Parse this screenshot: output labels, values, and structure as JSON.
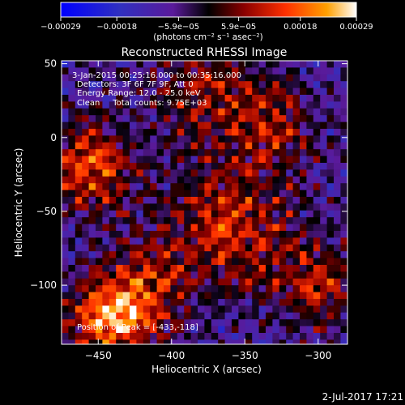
{
  "chart_data": {
    "type": "heatmap",
    "title": "Reconstructed RHESSI Image",
    "xlabel": "Heliocentric X (arcsec)",
    "ylabel": "Heliocentric Y (arcsec)",
    "xlim": [
      -475,
      -280
    ],
    "ylim": [
      -140,
      52
    ],
    "xticks": [
      -450,
      -400,
      -350,
      -300
    ],
    "xtick_labels": [
      "−450",
      "−400",
      "−350",
      "−300"
    ],
    "yticks": [
      50,
      0,
      -50,
      -100
    ],
    "ytick_labels": [
      "50",
      "0",
      "−50",
      "−100"
    ],
    "colorbar": {
      "ticks": [
        -0.00029,
        -0.00018,
        -5.9e-05,
        5.9e-05,
        0.00018,
        0.00029
      ],
      "tick_labels": [
        "−0.00029",
        "−0.00018",
        "−5.9e−05",
        "5.9e−05",
        "0.00018",
        "0.00029"
      ],
      "units_label": "(photons cm⁻² s⁻¹ asec⁻²)",
      "colors": [
        "#0000ff",
        "#3030c0",
        "#5a1a9a",
        "#000000",
        "#8a0000",
        "#ff3000",
        "#ffa000",
        "#ffffff"
      ]
    },
    "annotations": [
      "3-Jan-2015 00:25:16.000 to 00:35:16.000",
      "Detectors: 3F 6F 7F 9F, Att 0",
      "Energy Range: 12.0 - 25.0 keV",
      "Clean     Total counts: 9.75E+03"
    ],
    "peak_label": "Position of Peak = [-433,-118]",
    "peak": [
      -433,
      -118
    ],
    "footer_timestamp": "2-Jul-2017 17:21"
  }
}
